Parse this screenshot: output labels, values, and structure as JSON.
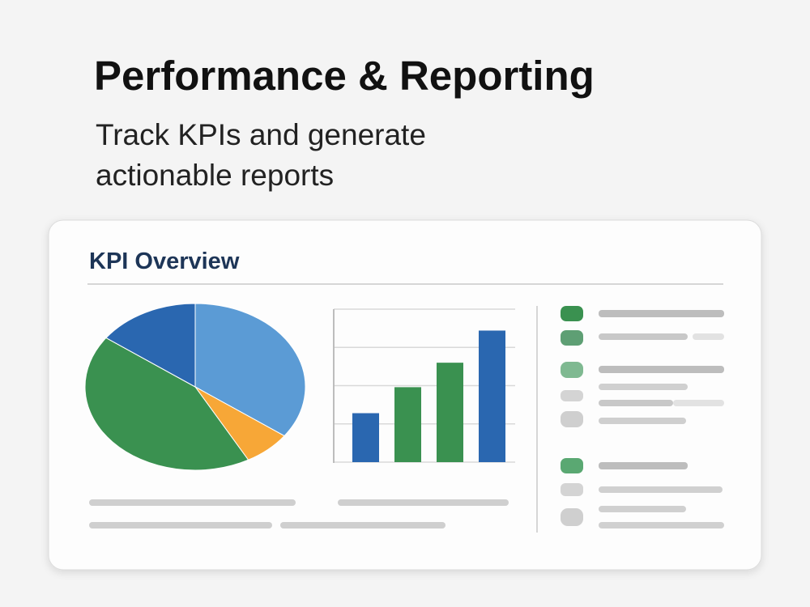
{
  "header": {
    "title": "Performance & Reporting",
    "subtitle": "Track KPIs and generate actionable reports"
  },
  "card": {
    "title": "KPI Overview"
  },
  "chart_data": [
    {
      "type": "pie",
      "values": [
        35,
        7,
        43,
        15
      ],
      "colors": [
        "#5b9bd5",
        "#f7a737",
        "#3a9150",
        "#2a67b0"
      ]
    },
    {
      "type": "bar",
      "values": [
        32,
        49,
        65,
        86
      ],
      "colors": [
        "#2a67b0",
        "#3a9150",
        "#3a9150",
        "#2a67b0"
      ],
      "ylim": [
        0,
        100
      ],
      "yticks": [
        0,
        25,
        50,
        75,
        100
      ],
      "grid": true
    }
  ]
}
